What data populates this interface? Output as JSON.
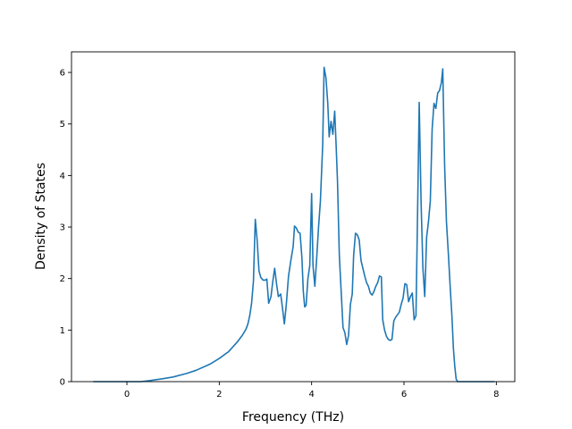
{
  "chart_data": {
    "type": "line",
    "title": "",
    "xlabel": "Frequency (THz)",
    "ylabel": "Density of States",
    "xlim": [
      -1.2,
      8.4
    ],
    "ylim": [
      0,
      6.4
    ],
    "xticks": [
      0,
      2,
      4,
      6,
      8
    ],
    "yticks": [
      0,
      1,
      2,
      3,
      4,
      5,
      6
    ],
    "grid": false,
    "legend": "none",
    "series": [
      {
        "color": "#1f77b4",
        "points": [
          [
            -0.73,
            0.0
          ],
          [
            0.0,
            0.0
          ],
          [
            0.3,
            0.0
          ],
          [
            0.5,
            0.02
          ],
          [
            0.8,
            0.06
          ],
          [
            1.0,
            0.09
          ],
          [
            1.3,
            0.16
          ],
          [
            1.5,
            0.22
          ],
          [
            1.8,
            0.34
          ],
          [
            2.0,
            0.45
          ],
          [
            2.2,
            0.58
          ],
          [
            2.4,
            0.78
          ],
          [
            2.5,
            0.9
          ],
          [
            2.58,
            1.02
          ],
          [
            2.62,
            1.12
          ],
          [
            2.66,
            1.28
          ],
          [
            2.7,
            1.52
          ],
          [
            2.74,
            1.95
          ],
          [
            2.78,
            3.15
          ],
          [
            2.82,
            2.75
          ],
          [
            2.86,
            2.15
          ],
          [
            2.9,
            2.02
          ],
          [
            2.95,
            1.97
          ],
          [
            3.0,
            1.97
          ],
          [
            3.03,
            1.99
          ],
          [
            3.07,
            1.52
          ],
          [
            3.12,
            1.65
          ],
          [
            3.16,
            1.95
          ],
          [
            3.2,
            2.2
          ],
          [
            3.24,
            1.9
          ],
          [
            3.28,
            1.65
          ],
          [
            3.33,
            1.7
          ],
          [
            3.37,
            1.42
          ],
          [
            3.41,
            1.12
          ],
          [
            3.45,
            1.48
          ],
          [
            3.5,
            2.05
          ],
          [
            3.55,
            2.35
          ],
          [
            3.6,
            2.62
          ],
          [
            3.63,
            3.02
          ],
          [
            3.67,
            2.98
          ],
          [
            3.71,
            2.9
          ],
          [
            3.75,
            2.88
          ],
          [
            3.79,
            2.4
          ],
          [
            3.82,
            1.75
          ],
          [
            3.85,
            1.45
          ],
          [
            3.88,
            1.48
          ],
          [
            3.92,
            2.0
          ],
          [
            3.96,
            2.25
          ],
          [
            4.0,
            3.65
          ],
          [
            4.03,
            2.25
          ],
          [
            4.07,
            1.85
          ],
          [
            4.11,
            2.4
          ],
          [
            4.15,
            3.0
          ],
          [
            4.19,
            3.5
          ],
          [
            4.24,
            4.6
          ],
          [
            4.27,
            6.1
          ],
          [
            4.31,
            5.9
          ],
          [
            4.35,
            5.4
          ],
          [
            4.38,
            4.75
          ],
          [
            4.42,
            5.05
          ],
          [
            4.46,
            4.8
          ],
          [
            4.5,
            5.25
          ],
          [
            4.53,
            4.6
          ],
          [
            4.56,
            3.9
          ],
          [
            4.6,
            2.45
          ],
          [
            4.64,
            1.75
          ],
          [
            4.68,
            1.05
          ],
          [
            4.72,
            0.95
          ],
          [
            4.76,
            0.72
          ],
          [
            4.8,
            0.9
          ],
          [
            4.84,
            1.5
          ],
          [
            4.88,
            1.7
          ],
          [
            4.91,
            2.45
          ],
          [
            4.95,
            2.88
          ],
          [
            4.99,
            2.85
          ],
          [
            5.03,
            2.75
          ],
          [
            5.07,
            2.35
          ],
          [
            5.11,
            2.2
          ],
          [
            5.15,
            2.05
          ],
          [
            5.19,
            1.92
          ],
          [
            5.23,
            1.85
          ],
          [
            5.27,
            1.72
          ],
          [
            5.31,
            1.68
          ],
          [
            5.35,
            1.75
          ],
          [
            5.39,
            1.85
          ],
          [
            5.43,
            1.92
          ],
          [
            5.47,
            2.05
          ],
          [
            5.51,
            2.03
          ],
          [
            5.54,
            1.2
          ],
          [
            5.58,
            1.0
          ],
          [
            5.62,
            0.88
          ],
          [
            5.66,
            0.82
          ],
          [
            5.7,
            0.8
          ],
          [
            5.74,
            0.82
          ],
          [
            5.78,
            1.18
          ],
          [
            5.82,
            1.25
          ],
          [
            5.86,
            1.3
          ],
          [
            5.9,
            1.35
          ],
          [
            5.94,
            1.5
          ],
          [
            5.98,
            1.62
          ],
          [
            6.02,
            1.9
          ],
          [
            6.06,
            1.88
          ],
          [
            6.1,
            1.55
          ],
          [
            6.14,
            1.65
          ],
          [
            6.18,
            1.72
          ],
          [
            6.22,
            1.2
          ],
          [
            6.26,
            1.28
          ],
          [
            6.3,
            3.6
          ],
          [
            6.33,
            5.42
          ],
          [
            6.37,
            3.5
          ],
          [
            6.41,
            2.2
          ],
          [
            6.45,
            1.65
          ],
          [
            6.49,
            2.8
          ],
          [
            6.53,
            3.1
          ],
          [
            6.57,
            3.5
          ],
          [
            6.61,
            4.9
          ],
          [
            6.65,
            5.4
          ],
          [
            6.69,
            5.3
          ],
          [
            6.73,
            5.6
          ],
          [
            6.77,
            5.65
          ],
          [
            6.81,
            5.8
          ],
          [
            6.84,
            6.07
          ],
          [
            6.88,
            4.2
          ],
          [
            6.92,
            3.1
          ],
          [
            6.96,
            2.5
          ],
          [
            7.0,
            1.85
          ],
          [
            7.04,
            1.25
          ],
          [
            7.07,
            0.65
          ],
          [
            7.1,
            0.3
          ],
          [
            7.13,
            0.05
          ],
          [
            7.16,
            0.0
          ],
          [
            7.5,
            0.0
          ],
          [
            7.96,
            0.0
          ]
        ]
      }
    ]
  }
}
